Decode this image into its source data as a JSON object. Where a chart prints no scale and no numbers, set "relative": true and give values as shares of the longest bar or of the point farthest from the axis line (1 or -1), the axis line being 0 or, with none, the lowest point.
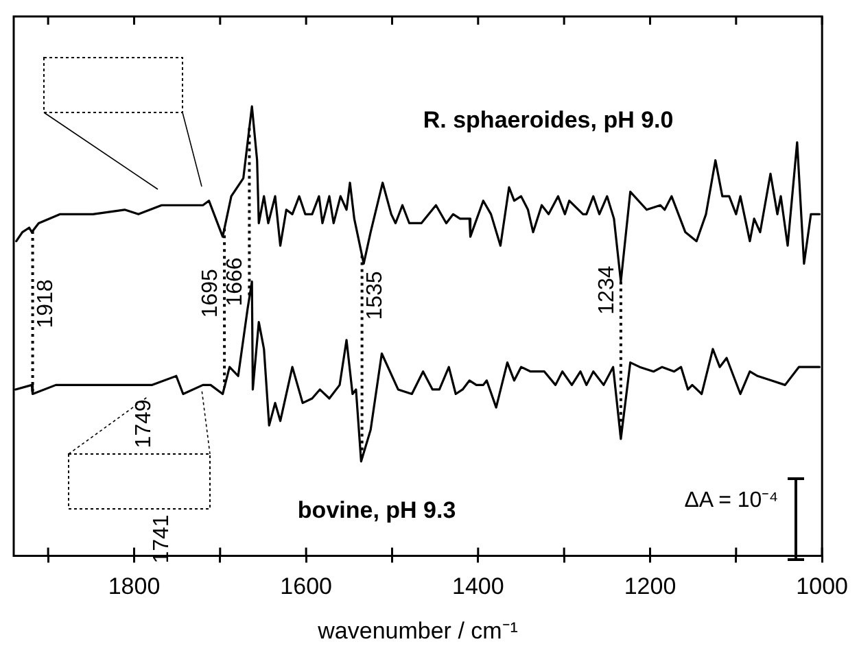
{
  "chart_data": {
    "type": "line",
    "relative": true,
    "xlabel": "wavenumber / cm⁻¹",
    "xlim": [
      1940,
      1000
    ],
    "xticks": [
      {
        "value": 1900,
        "label": null
      },
      1800,
      {
        "value": 1700,
        "label": null
      },
      1600,
      {
        "value": 1500,
        "label": null
      },
      1400,
      {
        "value": 1300,
        "label": null
      },
      1200,
      {
        "value": 1100,
        "label": null
      },
      1000
    ],
    "marker": "none",
    "line_style": "solid",
    "series": [
      {
        "name": "R. sphaeroides, pH 9.0",
        "color": "#000000",
        "x": [
          1937,
          1930,
          1922,
          1919,
          1911,
          1886,
          1848,
          1811,
          1795,
          1768,
          1720,
          1713,
          1697,
          1687,
          1673,
          1663,
          1657,
          1655,
          1649,
          1644,
          1636,
          1630,
          1623,
          1616,
          1608,
          1601,
          1593,
          1585,
          1581,
          1573,
          1568,
          1560,
          1553,
          1549,
          1544,
          1533,
          1525,
          1511,
          1501,
          1496,
          1488,
          1480,
          1466,
          1449,
          1437,
          1429,
          1421,
          1410,
          1409,
          1394,
          1385,
          1374,
          1364,
          1358,
          1350,
          1342,
          1336,
          1326,
          1318,
          1307,
          1299,
          1294,
          1278,
          1274,
          1266,
          1259,
          1250,
          1242,
          1234,
          1223,
          1204,
          1188,
          1183,
          1175,
          1159,
          1146,
          1135,
          1124,
          1116,
          1108,
          1100,
          1095,
          1084,
          1079,
          1072,
          1060,
          1052,
          1048,
          1040,
          1029,
          1021,
          1013,
          1003
        ],
        "values": [
          0.7,
          0.72,
          0.73,
          0.72,
          0.74,
          0.76,
          0.76,
          0.77,
          0.76,
          0.78,
          0.78,
          0.79,
          0.71,
          0.8,
          0.84,
          1.0,
          0.88,
          0.74,
          0.8,
          0.74,
          0.8,
          0.69,
          0.77,
          0.76,
          0.8,
          0.76,
          0.76,
          0.8,
          0.74,
          0.8,
          0.74,
          0.8,
          0.77,
          0.83,
          0.75,
          0.65,
          0.72,
          0.83,
          0.76,
          0.74,
          0.78,
          0.74,
          0.74,
          0.78,
          0.74,
          0.76,
          0.75,
          0.75,
          0.71,
          0.79,
          0.76,
          0.69,
          0.82,
          0.79,
          0.8,
          0.77,
          0.72,
          0.78,
          0.76,
          0.8,
          0.76,
          0.79,
          0.76,
          0.76,
          0.8,
          0.76,
          0.8,
          0.75,
          0.61,
          0.81,
          0.77,
          0.78,
          0.77,
          0.8,
          0.72,
          0.7,
          0.76,
          0.88,
          0.8,
          0.8,
          0.76,
          0.8,
          0.7,
          0.75,
          0.72,
          0.85,
          0.76,
          0.8,
          0.69,
          0.92,
          0.65,
          0.76,
          0.76
        ]
      },
      {
        "name": "bovine, pH 9.3",
        "color": "#000000",
        "x": [
          1938,
          1919,
          1918,
          1891,
          1848,
          1800,
          1779,
          1751,
          1743,
          1720,
          1711,
          1697,
          1689,
          1679,
          1668,
          1663,
          1662,
          1655,
          1649,
          1643,
          1636,
          1630,
          1616,
          1604,
          1593,
          1584,
          1573,
          1561,
          1553,
          1546,
          1542,
          1536,
          1525,
          1512,
          1493,
          1477,
          1464,
          1453,
          1445,
          1434,
          1426,
          1418,
          1410,
          1402,
          1394,
          1390,
          1379,
          1366,
          1358,
          1350,
          1339,
          1323,
          1310,
          1302,
          1291,
          1281,
          1274,
          1266,
          1254,
          1243,
          1234,
          1223,
          1212,
          1196,
          1186,
          1172,
          1164,
          1156,
          1151,
          1140,
          1127,
          1119,
          1111,
          1095,
          1084,
          1075,
          1059,
          1043,
          1027,
          1016,
          1003
        ],
        "values": [
          0.37,
          0.38,
          0.36,
          0.38,
          0.38,
          0.38,
          0.38,
          0.4,
          0.36,
          0.38,
          0.38,
          0.36,
          0.42,
          0.4,
          0.55,
          0.61,
          0.37,
          0.52,
          0.46,
          0.29,
          0.34,
          0.3,
          0.42,
          0.34,
          0.35,
          0.37,
          0.35,
          0.38,
          0.48,
          0.36,
          0.37,
          0.21,
          0.28,
          0.45,
          0.37,
          0.36,
          0.41,
          0.37,
          0.37,
          0.42,
          0.36,
          0.37,
          0.39,
          0.38,
          0.38,
          0.39,
          0.33,
          0.43,
          0.39,
          0.42,
          0.41,
          0.41,
          0.38,
          0.41,
          0.38,
          0.41,
          0.38,
          0.41,
          0.38,
          0.42,
          0.26,
          0.43,
          0.42,
          0.41,
          0.42,
          0.41,
          0.42,
          0.37,
          0.38,
          0.36,
          0.46,
          0.42,
          0.44,
          0.36,
          0.41,
          0.4,
          0.39,
          0.38,
          0.42,
          0.42,
          0.42
        ]
      }
    ],
    "ref_lines": [
      {
        "axis": "x",
        "value": 1918,
        "label": "1918",
        "line_style": "dotted"
      },
      {
        "axis": "x",
        "value": 1695,
        "label": "1695",
        "line_style": "dotted"
      },
      {
        "axis": "x",
        "value": 1666,
        "label": "1666",
        "line_style": "dotted"
      },
      {
        "axis": "x",
        "value": 1535,
        "label": "1535",
        "line_style": "dotted"
      },
      {
        "axis": "x",
        "value": 1234,
        "label": "1234",
        "line_style": "dotted"
      }
    ],
    "annotations": [
      "1749",
      "1741",
      "ΔA = 10⁻⁴"
    ]
  }
}
